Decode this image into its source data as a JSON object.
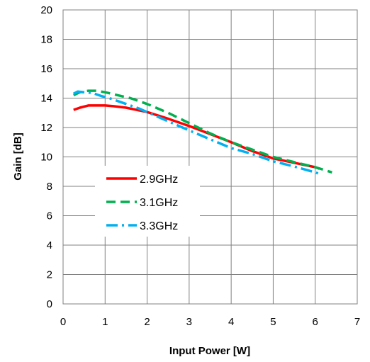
{
  "chart_data": {
    "type": "line",
    "title": "",
    "xlabel": "Input Power [W]",
    "ylabel": "Gain  [dB]",
    "xlim": [
      0,
      7
    ],
    "ylim": [
      0,
      20
    ],
    "xticks": [
      0,
      1,
      2,
      3,
      4,
      5,
      6,
      7
    ],
    "yticks": [
      0,
      2,
      4,
      6,
      8,
      10,
      12,
      14,
      16,
      18,
      20
    ],
    "grid": true,
    "legend_position": "center-left",
    "series": [
      {
        "name": "2.9GHz",
        "color": "#ff0000",
        "style": "solid",
        "x": [
          0.25,
          0.4,
          0.6,
          0.8,
          1.0,
          1.2,
          1.5,
          2.0,
          2.5,
          3.0,
          3.5,
          4.0,
          4.5,
          5.0,
          5.5,
          6.0,
          6.1
        ],
        "y": [
          13.2,
          13.35,
          13.5,
          13.5,
          13.5,
          13.45,
          13.35,
          13.05,
          12.6,
          12.1,
          11.55,
          11.0,
          10.4,
          9.9,
          9.6,
          9.3,
          9.2
        ]
      },
      {
        "name": "3.1GHz",
        "color": "#00b050",
        "style": "dashed",
        "x": [
          0.25,
          0.4,
          0.6,
          0.8,
          1.0,
          1.3,
          1.6,
          2.0,
          2.5,
          3.0,
          3.5,
          4.0,
          4.5,
          5.0,
          5.5,
          6.0,
          6.4
        ],
        "y": [
          14.2,
          14.4,
          14.5,
          14.5,
          14.4,
          14.2,
          14.0,
          13.6,
          13.0,
          12.3,
          11.6,
          11.0,
          10.5,
          10.0,
          9.65,
          9.3,
          8.95
        ]
      },
      {
        "name": "3.3GHz",
        "color": "#00b0f0",
        "style": "dashdot",
        "x": [
          0.25,
          0.35,
          0.5,
          0.7,
          0.9,
          1.1,
          1.4,
          1.8,
          2.2,
          2.6,
          3.0,
          3.5,
          4.0,
          4.5,
          5.0,
          5.5,
          6.0,
          6.1
        ],
        "y": [
          14.3,
          14.45,
          14.4,
          14.35,
          14.15,
          14.0,
          13.7,
          13.3,
          12.8,
          12.3,
          11.8,
          11.2,
          10.6,
          10.2,
          9.7,
          9.35,
          8.95,
          8.85
        ]
      }
    ]
  }
}
